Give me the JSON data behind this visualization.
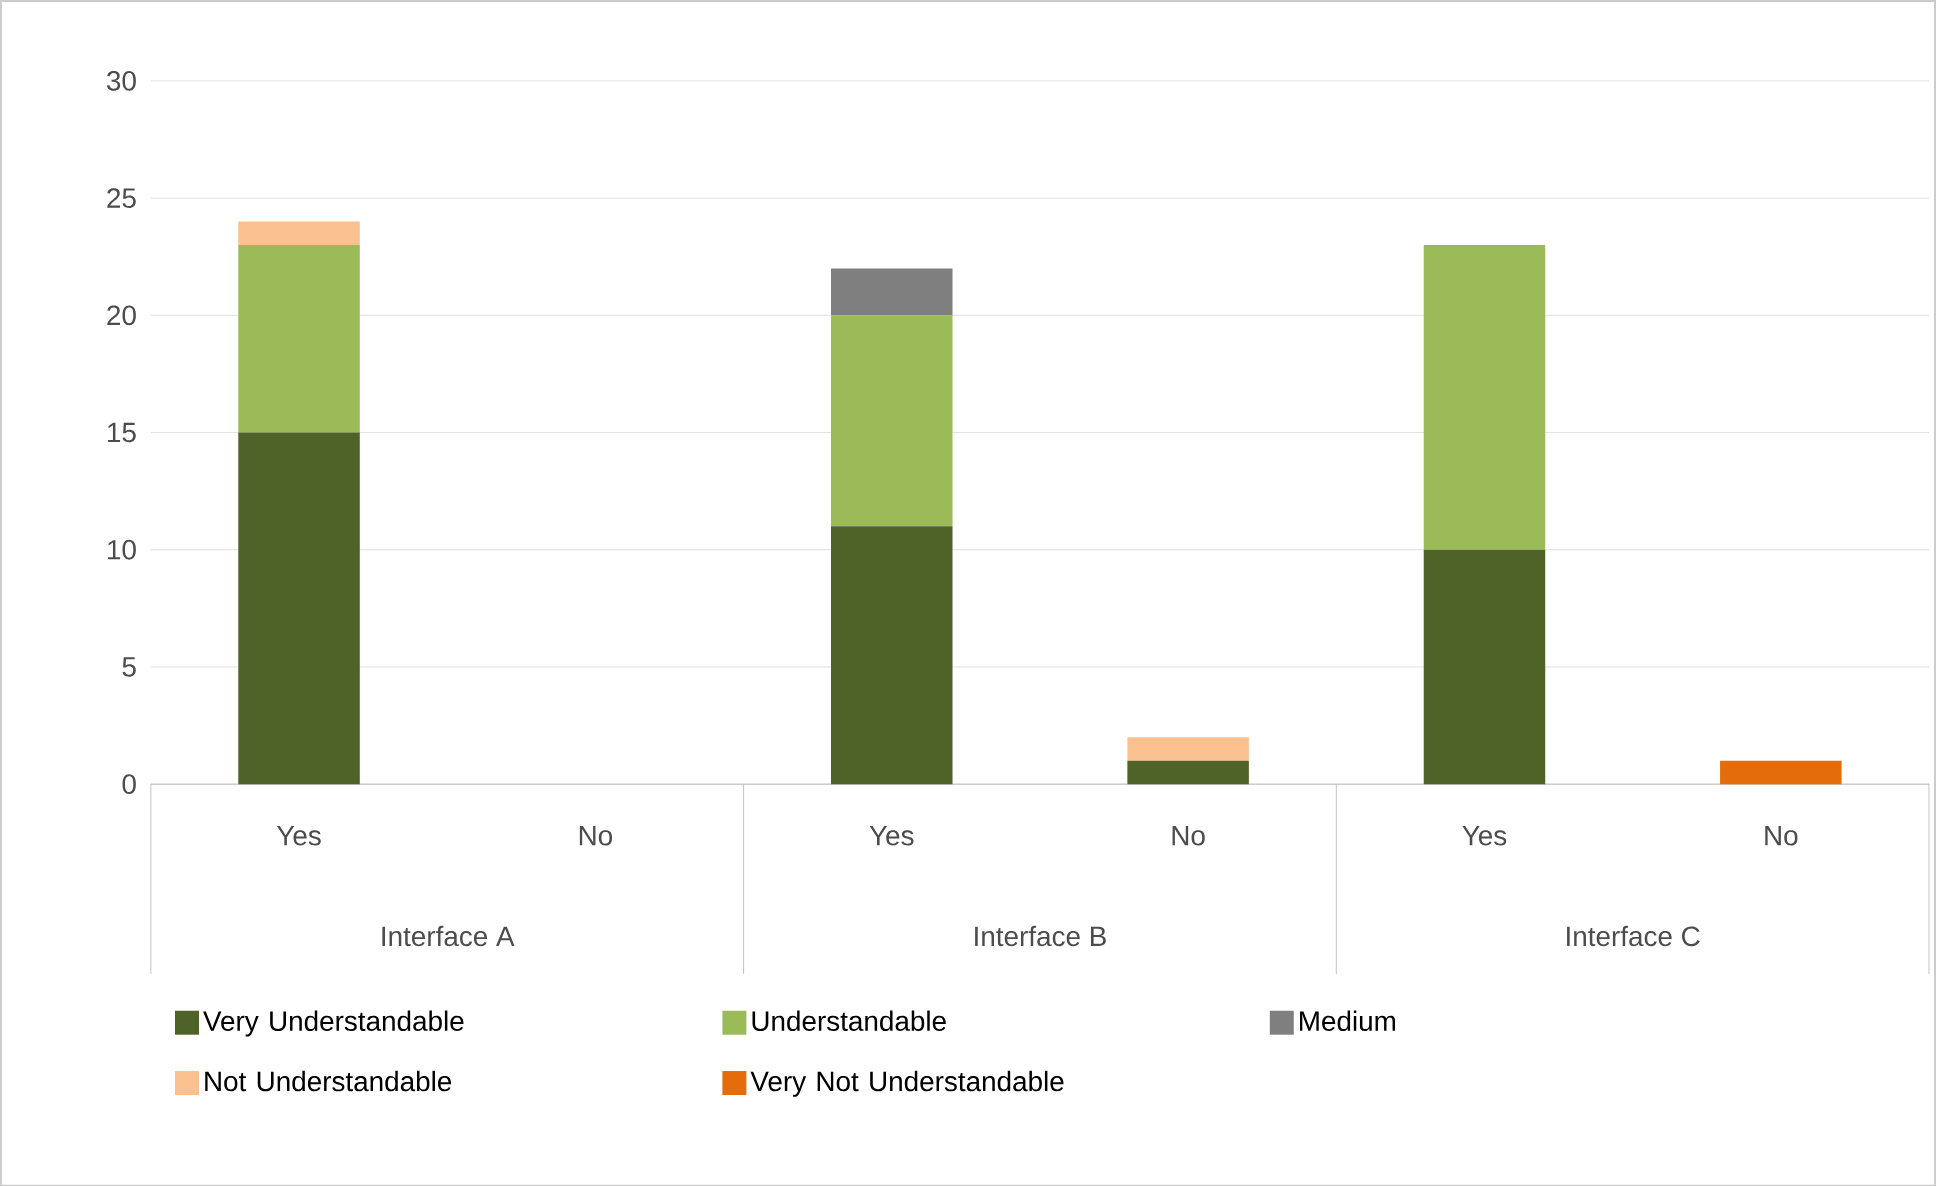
{
  "chart_data": {
    "type": "bar",
    "stacked": true,
    "categories": [
      "Yes",
      "No",
      "Yes",
      "No",
      "Yes",
      "No"
    ],
    "series": [
      {
        "name": "Very Understandable",
        "color": "#4f6228",
        "values": [
          15,
          0,
          11,
          1,
          10,
          0
        ]
      },
      {
        "name": "Understandable",
        "color": "#9bbb59",
        "values": [
          8,
          0,
          9,
          0,
          13,
          0
        ]
      },
      {
        "name": "Medium",
        "color": "#7f7f7f",
        "values": [
          0,
          0,
          2,
          0,
          0,
          0
        ]
      },
      {
        "name": "Not Understandable",
        "color": "#fac090",
        "values": [
          1,
          0,
          0,
          1,
          0,
          0
        ]
      },
      {
        "name": "Very Not Understandable",
        "color": "#e46c0a",
        "values": [
          0,
          0,
          0,
          0,
          0,
          1
        ]
      }
    ],
    "annotations": [
      "Interface A",
      "Interface B",
      "Interface C"
    ],
    "ylim": [
      0,
      30
    ],
    "yticks": [
      0,
      5,
      10,
      15,
      20,
      25,
      30
    ],
    "grid": "y",
    "legend": "bottom"
  }
}
